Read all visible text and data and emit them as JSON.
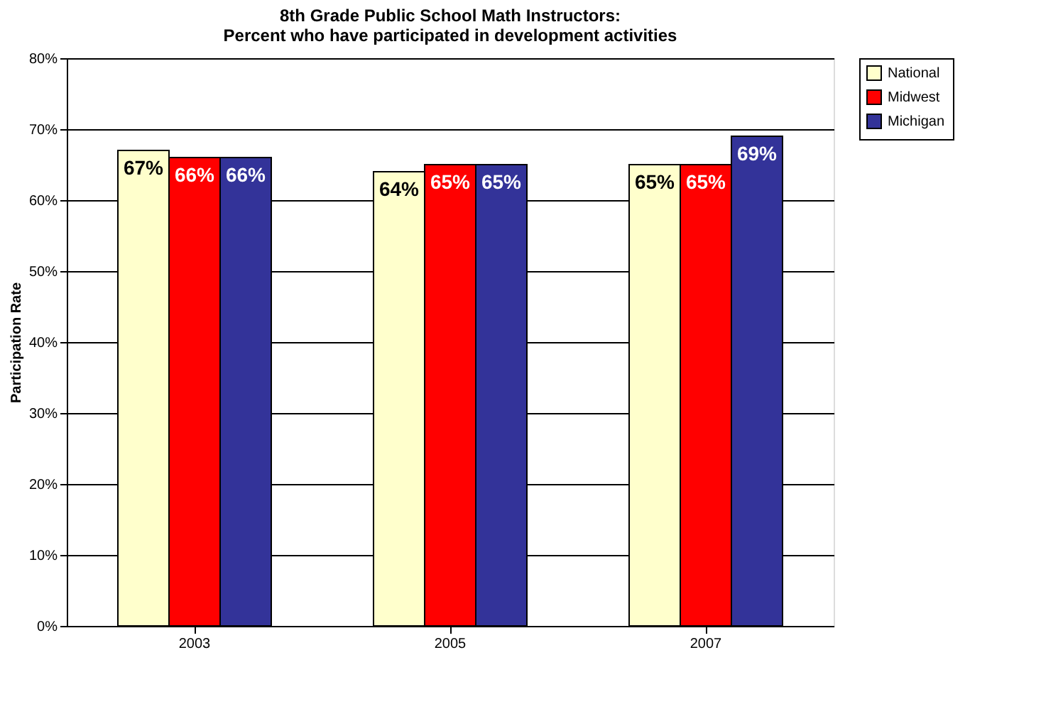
{
  "chart_data": {
    "type": "bar",
    "title": [
      "8th Grade Public School Math Instructors:",
      "Percent who have participated in development activities"
    ],
    "ylabel": "Participation Rate",
    "categories": [
      "2003",
      "2005",
      "2007"
    ],
    "series": [
      {
        "name": "National",
        "color": "#ffffcc",
        "values": [
          67,
          64,
          65
        ],
        "value_labels": [
          "67%",
          "64%",
          "65%"
        ]
      },
      {
        "name": "Midwest",
        "color": "#ff0000",
        "values": [
          66,
          65,
          65
        ],
        "value_labels": [
          "66%",
          "65%",
          "65%"
        ]
      },
      {
        "name": "Michigan",
        "color": "#333399",
        "values": [
          66,
          65,
          69
        ],
        "value_labels": [
          "66%",
          "65%",
          "69%"
        ]
      }
    ],
    "ylim": [
      0,
      80
    ],
    "yticks": [
      {
        "value": 0,
        "label": "0%"
      },
      {
        "value": 10,
        "label": "10%"
      },
      {
        "value": 20,
        "label": "20%"
      },
      {
        "value": 30,
        "label": "30%"
      },
      {
        "value": 40,
        "label": "40%"
      },
      {
        "value": 50,
        "label": "50%"
      },
      {
        "value": 60,
        "label": "60%"
      },
      {
        "value": 70,
        "label": "70%"
      },
      {
        "value": 80,
        "label": "80%"
      }
    ],
    "grid": "y",
    "legend": "right"
  }
}
